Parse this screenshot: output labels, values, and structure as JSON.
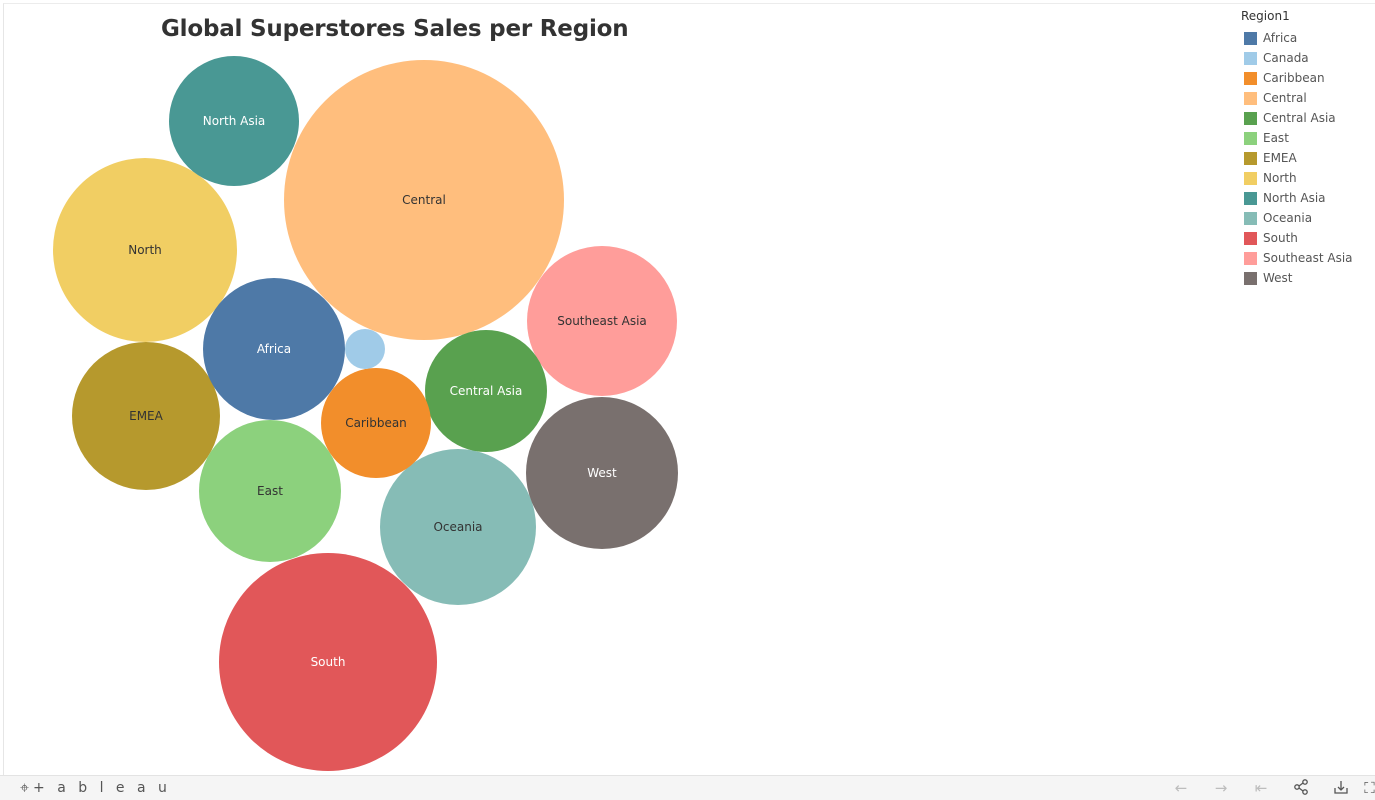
{
  "chart_data": {
    "type": "bubble",
    "title": "Global Superstores Sales per Region",
    "legend_title": "Region1",
    "legend_position": "top-right",
    "series": [
      {
        "name": "Africa",
        "color": "#4e79a7"
      },
      {
        "name": "Canada",
        "color": "#a0cbe8"
      },
      {
        "name": "Caribbean",
        "color": "#f28e2b"
      },
      {
        "name": "Central",
        "color": "#ffbe7d"
      },
      {
        "name": "Central Asia",
        "color": "#59a14f"
      },
      {
        "name": "East",
        "color": "#8cd17d"
      },
      {
        "name": "EMEA",
        "color": "#b6992d"
      },
      {
        "name": "North",
        "color": "#f1ce63"
      },
      {
        "name": "North Asia",
        "color": "#499894"
      },
      {
        "name": "Oceania",
        "color": "#86bcb6"
      },
      {
        "name": "South",
        "color": "#e15759"
      },
      {
        "name": "Southeast Asia",
        "color": "#ff9d9a"
      },
      {
        "name": "West",
        "color": "#79706e"
      }
    ],
    "relative_sales": [
      0.26,
      0.02,
      0.15,
      1.0,
      0.19,
      0.26,
      0.28,
      0.43,
      0.21,
      0.31,
      0.6,
      0.29,
      0.3
    ]
  },
  "toolbar": {
    "logo_text": "+ a b l e a u",
    "logo_icon": "tableau-logo-icon",
    "buttons": [
      "undo-icon",
      "redo-icon",
      "revert-icon",
      "share-icon",
      "download-icon",
      "fullscreen-icon"
    ]
  }
}
